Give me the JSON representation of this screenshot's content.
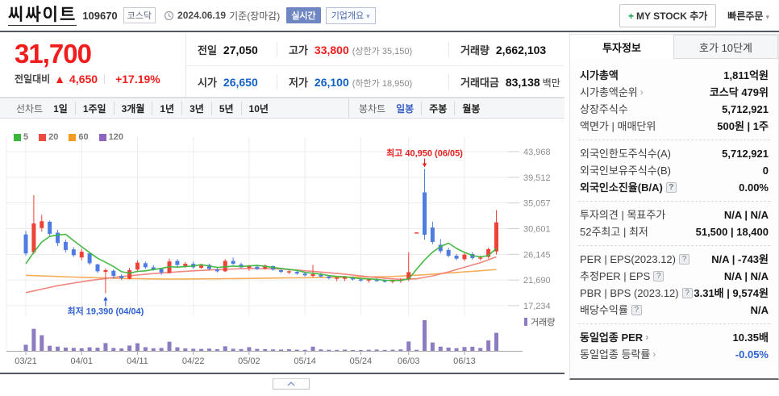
{
  "icons": {
    "chevron_down": "▾",
    "plus": "+",
    "arrow_right": "›",
    "help": "?"
  },
  "header": {
    "title": "씨싸이트",
    "code": "109670",
    "market_badge": "코스닥",
    "date": "2024.06.19",
    "date_suffix": "기준(장마감)",
    "realtime_badge": "실시간",
    "overview_dropdown": "기업개요",
    "my_stock_label": "MY STOCK 추가",
    "quick_order": "빠른주문"
  },
  "price": {
    "current": "31,700",
    "change_label": "전일대비",
    "change_arrow": "▲",
    "change_value": "4,650",
    "change_percent": "+17.19%",
    "table": {
      "prev_label": "전일",
      "prev": "27,050",
      "high_label": "고가",
      "high": "33,800",
      "high_limit": "(상한가 35,150)",
      "volume_label": "거래량",
      "volume": "2,662,103",
      "open_label": "시가",
      "open": "26,650",
      "low_label": "저가",
      "low": "26,100",
      "low_limit": "(하한가 18,950)",
      "amount_label": "거래대금",
      "amount": "83,138",
      "amount_unit": "백만"
    }
  },
  "toolbar": {
    "line_chart_label": "선차트",
    "periods": [
      "1일",
      "1주일",
      "3개월",
      "1년",
      "3년",
      "5년",
      "10년"
    ],
    "candle_chart_label": "봉차트",
    "candle_options": [
      {
        "label": "일봉",
        "active": true
      },
      {
        "label": "주봉",
        "active": false
      },
      {
        "label": "월봉",
        "active": false
      }
    ]
  },
  "chart_data": {
    "type": "candlestick",
    "legend_ma": [
      {
        "label": "5",
        "color": "#3cb53c"
      },
      {
        "label": "20",
        "color": "#ee4b40"
      },
      {
        "label": "60",
        "color": "#f59b22"
      },
      {
        "label": "120",
        "color": "#8f63c0"
      }
    ],
    "y_ticks": [
      43968,
      39512,
      35057,
      30601,
      26145,
      21690,
      17234
    ],
    "y_range": [
      17234,
      43968
    ],
    "x_tick_labels": [
      "03/21",
      "04/01",
      "04/11",
      "04/22",
      "05/02",
      "05/14",
      "05/24",
      "06/03",
      "06/13"
    ],
    "x_tick_indexes": [
      0,
      7,
      14,
      21,
      28,
      35,
      42,
      48,
      55
    ],
    "volume_legend": "거래량",
    "annotations": {
      "high": {
        "label": "최고 40,950 (06/05)",
        "index": 50,
        "value": 40950
      },
      "low": {
        "label": "최저 19,390 (04/04)",
        "index": 10,
        "value": 19390
      }
    },
    "candles": [
      [
        29600,
        30200,
        25900,
        26300
      ],
      [
        26500,
        36400,
        26200,
        31500
      ],
      [
        30700,
        33000,
        30100,
        31900
      ],
      [
        31800,
        32000,
        29300,
        29700
      ],
      [
        29900,
        30400,
        27600,
        28100
      ],
      [
        28300,
        28700,
        26500,
        26900
      ],
      [
        27000,
        27400,
        25700,
        26000
      ],
      [
        25600,
        27100,
        25100,
        26600
      ],
      [
        26300,
        26500,
        24300,
        24600
      ],
      [
        24400,
        24500,
        22900,
        23200
      ],
      [
        23100,
        23700,
        19390,
        23400
      ],
      [
        23300,
        23500,
        21900,
        22400
      ],
      [
        22400,
        22700,
        21700,
        22000
      ],
      [
        21900,
        23800,
        21800,
        23400
      ],
      [
        23500,
        25100,
        23100,
        24700
      ],
      [
        24600,
        24900,
        23600,
        23900
      ],
      [
        23900,
        24300,
        23300,
        23500
      ],
      [
        23600,
        23800,
        22600,
        23000
      ],
      [
        22900,
        25400,
        22800,
        24900
      ],
      [
        25000,
        25300,
        24000,
        24300
      ],
      [
        24100,
        24800,
        23800,
        24500
      ],
      [
        24500,
        24900,
        23600,
        23900
      ],
      [
        23800,
        24500,
        23600,
        24200
      ],
      [
        24300,
        24500,
        23400,
        23600
      ],
      [
        23500,
        23800,
        23000,
        23200
      ],
      [
        23200,
        25300,
        23100,
        25000
      ],
      [
        25000,
        25600,
        24300,
        24500
      ],
      [
        24400,
        24700,
        23700,
        23900
      ],
      [
        23800,
        24300,
        23300,
        24100
      ],
      [
        24000,
        24200,
        23400,
        23600
      ],
      [
        23700,
        24400,
        23500,
        24200
      ],
      [
        24100,
        24200,
        23300,
        23500
      ],
      [
        23400,
        23600,
        22900,
        23100
      ],
      [
        23000,
        23400,
        22700,
        23200
      ],
      [
        23100,
        23300,
        22600,
        22800
      ],
      [
        22800,
        23000,
        22300,
        22500
      ],
      [
        22400,
        24300,
        22200,
        22700
      ],
      [
        22600,
        22900,
        22100,
        22300
      ],
      [
        22300,
        22500,
        21800,
        22000
      ],
      [
        21900,
        22200,
        21500,
        22100
      ],
      [
        21900,
        22400,
        21500,
        22200
      ],
      [
        22100,
        22300,
        21600,
        21800
      ],
      [
        21800,
        22100,
        21400,
        21600
      ],
      [
        21600,
        21900,
        21200,
        21800
      ],
      [
        21700,
        22000,
        21400,
        21600
      ],
      [
        21600,
        21800,
        21200,
        21400
      ],
      [
        21400,
        21700,
        21100,
        21600
      ],
      [
        21500,
        22000,
        21200,
        21700
      ],
      [
        21800,
        26500,
        21500,
        23050
      ],
      [
        29950,
        29950,
        29950,
        29950
      ],
      [
        36900,
        40950,
        28700,
        29550
      ],
      [
        30800,
        31800,
        27900,
        28300
      ],
      [
        27800,
        28800,
        26300,
        26700
      ],
      [
        26900,
        27300,
        25600,
        25900
      ],
      [
        25900,
        26200,
        25100,
        25400
      ],
      [
        25300,
        26400,
        25000,
        26100
      ],
      [
        26200,
        26500,
        25200,
        25500
      ],
      [
        25400,
        25900,
        25100,
        25600
      ],
      [
        25700,
        27300,
        25400,
        27050
      ],
      [
        26650,
        33800,
        26100,
        31700
      ]
    ],
    "volumes": [
      900000,
      3250000,
      2300000,
      750000,
      620000,
      480000,
      430000,
      380000,
      520000,
      460000,
      1150000,
      420000,
      350000,
      780000,
      1120000,
      540000,
      380000,
      420000,
      1350000,
      520000,
      360000,
      310000,
      280000,
      330000,
      240000,
      680000,
      310000,
      260000,
      540000,
      290000,
      240000,
      210000,
      190000,
      230000,
      170000,
      150000,
      620000,
      210000,
      160000,
      140000,
      180000,
      130000,
      120000,
      160000,
      190000,
      140000,
      170000,
      210000,
      1380000,
      160000,
      4520000,
      1230000,
      620000,
      480000,
      390000,
      560000,
      610000,
      420000,
      1530000,
      2662103
    ],
    "ma_pre_closes": [
      21500,
      23000,
      24800,
      26900
    ],
    "ma20_points": [
      [
        0,
        19500
      ],
      [
        4,
        20700
      ],
      [
        8,
        21600
      ],
      [
        12,
        22300
      ],
      [
        16,
        22800
      ],
      [
        20,
        23200
      ],
      [
        24,
        23500
      ],
      [
        28,
        23700
      ],
      [
        32,
        23600
      ],
      [
        36,
        23200
      ],
      [
        40,
        22700
      ],
      [
        44,
        22100
      ],
      [
        47,
        21800
      ],
      [
        49,
        21900
      ],
      [
        51,
        22400
      ],
      [
        53,
        23100
      ],
      [
        55,
        23900
      ],
      [
        57,
        24700
      ],
      [
        59,
        25700
      ]
    ],
    "ma60_points": [
      [
        0,
        22500
      ],
      [
        6,
        22200
      ],
      [
        12,
        21950
      ],
      [
        18,
        21850
      ],
      [
        24,
        21900
      ],
      [
        30,
        22000
      ],
      [
        36,
        22100
      ],
      [
        42,
        22200
      ],
      [
        46,
        22300
      ],
      [
        50,
        22600
      ],
      [
        53,
        22900
      ],
      [
        56,
        23200
      ],
      [
        59,
        23500
      ]
    ],
    "colors": {
      "up": "#ee4237",
      "down": "#4f7ce0",
      "volume": "#8e7cc3",
      "ma5": "#3cb53c",
      "ma20": "#f08078",
      "ma60": "#f4a950",
      "grid": "#ececec",
      "axis": "#a8a8a8"
    }
  },
  "sidebar": {
    "tabs": [
      {
        "label": "투자정보",
        "active": true
      },
      {
        "label": "호가 10단계",
        "active": false
      }
    ],
    "sections": [
      {
        "rows": [
          {
            "label": "시가총액",
            "label_bold": true,
            "value": "1,811억원"
          },
          {
            "label": "시가총액순위",
            "arrow": true,
            "value": "코스닥 479위"
          },
          {
            "label": "상장주식수",
            "value": "5,712,921"
          },
          {
            "label": "액면가 | 매매단위",
            "value": "500원 | 1주"
          }
        ]
      },
      {
        "rows": [
          {
            "label": "외국인한도주식수(A)",
            "value": "5,712,921"
          },
          {
            "label": "외국인보유주식수(B)",
            "value": "0"
          },
          {
            "label": "외국인소진율(B/A)",
            "label_bold": true,
            "help": true,
            "value": "0.00%"
          }
        ]
      },
      {
        "rows": [
          {
            "label": "투자의견 | 목표주가",
            "value": "N/A | N/A"
          },
          {
            "label": "52주최고 | 최저",
            "value": "51,500 | 18,400"
          }
        ]
      },
      {
        "rows": [
          {
            "label": "PER | EPS(2023.12)",
            "help": true,
            "value": "N/A | -743원"
          },
          {
            "label": "추정PER | EPS",
            "help": true,
            "value": "N/A | N/A"
          },
          {
            "label": "PBR | BPS (2023.12)",
            "help": true,
            "value": "3.31배 | 9,574원"
          },
          {
            "label": "배당수익률",
            "help": true,
            "value": "N/A"
          }
        ]
      },
      {
        "rows": [
          {
            "label": "동일업종 PER",
            "label_bold": true,
            "arrow": true,
            "value": "10.35배"
          },
          {
            "label": "동일업종 등락률",
            "arrow": true,
            "value": "-0.05%",
            "value_class": "down"
          }
        ]
      }
    ]
  }
}
